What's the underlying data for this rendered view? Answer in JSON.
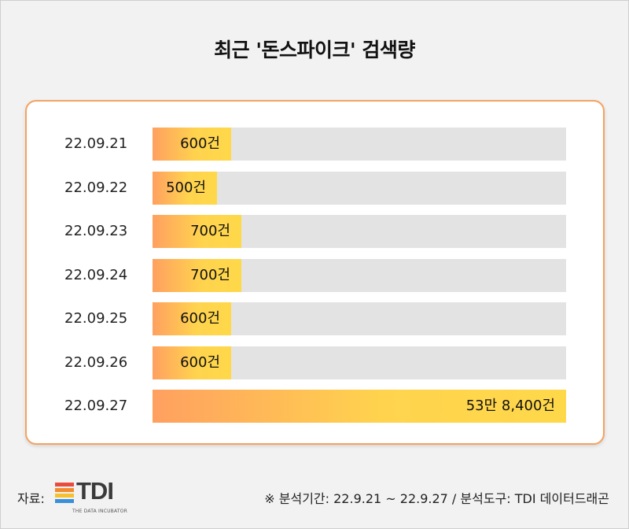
{
  "title": "최근 '돈스파이크' 검색량",
  "chart_data": {
    "type": "bar",
    "orientation": "horizontal",
    "categories": [
      "22.09.21",
      "22.09.22",
      "22.09.23",
      "22.09.24",
      "22.09.25",
      "22.09.26",
      "22.09.27"
    ],
    "values": [
      600,
      500,
      700,
      700,
      600,
      600,
      538400
    ],
    "value_labels": [
      "600건",
      "500건",
      "700건",
      "700건",
      "600건",
      "600건",
      "53만 8,400건"
    ],
    "bar_fill_fraction": [
      0.19,
      0.155,
      0.215,
      0.215,
      0.19,
      0.19,
      1.0
    ],
    "colors": {
      "bar_start": "#ffa060",
      "bar_end": "#ffd84a",
      "track": "#e3e3e3",
      "card_border": "#f4a261"
    }
  },
  "footer": {
    "source_label": "자료:",
    "logo_text": "TDI",
    "logo_sub": "THE DATA INCUBATOR",
    "logo_colors": [
      "#e94b3c",
      "#f28b30",
      "#f6c12c",
      "#3b8fd9"
    ],
    "note": "※ 분석기간: 22.9.21 ~ 22.9.27 / 분석도구: TDI 데이터드래곤"
  }
}
